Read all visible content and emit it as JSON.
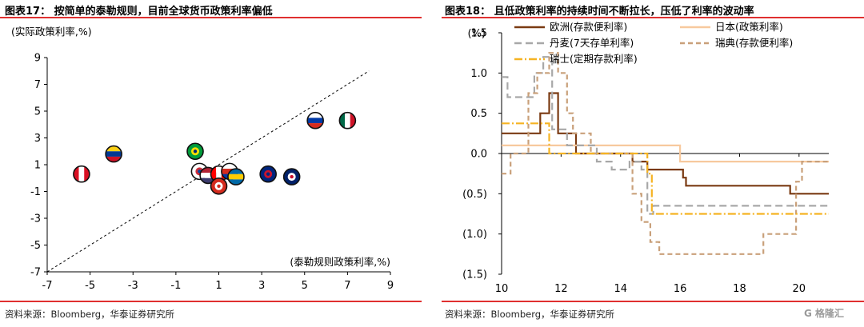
{
  "left": {
    "title": "图表17：  按简单的泰勒规则，目前全球货币政策利率偏低",
    "source": "资料来源：Bloomberg，华泰证券研究所"
  },
  "right": {
    "title": "图表18：  且低政策利率的持续时间不断拉长，压低了利率的波动率",
    "source": "资料来源：Bloomberg，华泰证券研究所"
  },
  "watermark": "G 格隆汇",
  "colors": {
    "rule": "#e03030"
  },
  "chart_data": [
    {
      "type": "scatter",
      "title": "",
      "ylabel": "(实际政策利率,%)",
      "xlabel": "(泰勒规则政策利率,%)",
      "xlim": [
        -7,
        9
      ],
      "ylim": [
        -7,
        9
      ],
      "xticks": [
        -7,
        -5,
        -3,
        -1,
        1,
        3,
        5,
        7,
        9
      ],
      "yticks": [
        9,
        7,
        5,
        3,
        1,
        -1,
        -3,
        -5,
        -7
      ],
      "reference_line": {
        "style": "dashed",
        "from": [
          -7,
          -7
        ],
        "to": [
          8,
          8
        ]
      },
      "points": [
        {
          "x": -5.4,
          "y": 0.3,
          "flag": "peru",
          "colors": [
            "#d91023",
            "#ffffff",
            "#d91023"
          ],
          "dir": "v"
        },
        {
          "x": -3.9,
          "y": 1.8,
          "flag": "colombia",
          "colors": [
            "#fcd116",
            "#003893",
            "#ce1126"
          ],
          "dir": "h"
        },
        {
          "x": -0.1,
          "y": 2.0,
          "flag": "brazil",
          "colors": [
            "#009c3b",
            "#ffdf00",
            "#002776"
          ],
          "dir": "c"
        },
        {
          "x": 0.1,
          "y": 0.5,
          "flag": "korea",
          "colors": [
            "#ffffff",
            "#cd2e3a",
            "#0047a0"
          ],
          "dir": "c"
        },
        {
          "x": 0.5,
          "y": 0.2,
          "flag": "usa",
          "colors": [
            "#b22234",
            "#ffffff",
            "#3c3b6e"
          ],
          "dir": "h"
        },
        {
          "x": 1.0,
          "y": 0.3,
          "flag": "canada",
          "colors": [
            "#ff0000",
            "#ffffff",
            "#ff0000"
          ],
          "dir": "v"
        },
        {
          "x": 1.5,
          "y": 0.5,
          "flag": "chile",
          "colors": [
            "#ffffff",
            "#d52b1e",
            "#0039a6"
          ],
          "dir": "h"
        },
        {
          "x": 1.8,
          "y": 0.1,
          "flag": "sweden",
          "colors": [
            "#006aa7",
            "#fecc00",
            "#006aa7"
          ],
          "dir": "h"
        },
        {
          "x": 1.0,
          "y": -0.6,
          "flag": "switzerland",
          "colors": [
            "#d52b1e",
            "#ffffff",
            "#d52b1e"
          ],
          "dir": "c"
        },
        {
          "x": 3.3,
          "y": 0.3,
          "flag": "new-zealand",
          "colors": [
            "#00247d",
            "#cc142b",
            "#00247d"
          ],
          "dir": "c"
        },
        {
          "x": 4.4,
          "y": 0.1,
          "flag": "uk",
          "colors": [
            "#012169",
            "#ffffff",
            "#c8102e"
          ],
          "dir": "c"
        },
        {
          "x": 5.5,
          "y": 4.3,
          "flag": "russia",
          "colors": [
            "#ffffff",
            "#0039a6",
            "#d52b1e"
          ],
          "dir": "h"
        },
        {
          "x": 7.0,
          "y": 4.3,
          "flag": "mexico",
          "colors": [
            "#006847",
            "#ffffff",
            "#ce1126"
          ],
          "dir": "v"
        }
      ]
    },
    {
      "type": "line",
      "title": "",
      "ylabel": "(%)",
      "xlim": [
        10,
        21
      ],
      "ylim": [
        -1.5,
        1.5
      ],
      "xticks": [
        10,
        12,
        14,
        16,
        18,
        20
      ],
      "yticks": [
        1.5,
        1.0,
        0.5,
        0.0,
        -0.5,
        -1.0,
        -1.5
      ],
      "ytick_labels": [
        "1.5",
        "1.0",
        "0.5",
        "0.0",
        "(0.5)",
        "(1.0)",
        "(1.5)"
      ],
      "legend_placement": "top",
      "series": [
        {
          "name": "欧洲(存款便利率)",
          "color": "#7a3a12",
          "dash": "",
          "width": 2.2,
          "points": [
            [
              10,
              0.25
            ],
            [
              11.3,
              0.25
            ],
            [
              11.3,
              0.5
            ],
            [
              11.6,
              0.5
            ],
            [
              11.6,
              0.75
            ],
            [
              11.9,
              0.75
            ],
            [
              11.9,
              0.25
            ],
            [
              12.5,
              0.25
            ],
            [
              12.5,
              0.0
            ],
            [
              14.4,
              0.0
            ],
            [
              14.4,
              -0.1
            ],
            [
              14.9,
              -0.1
            ],
            [
              14.9,
              -0.2
            ],
            [
              16.1,
              -0.2
            ],
            [
              16.1,
              -0.3
            ],
            [
              16.2,
              -0.3
            ],
            [
              16.2,
              -0.4
            ],
            [
              19.7,
              -0.4
            ],
            [
              19.7,
              -0.5
            ],
            [
              21,
              -0.5
            ]
          ]
        },
        {
          "name": "日本(政策利率)",
          "color": "#f7c99e",
          "dash": "",
          "width": 2.2,
          "points": [
            [
              10,
              0.1
            ],
            [
              16.0,
              0.1
            ],
            [
              16.0,
              -0.1
            ],
            [
              21,
              -0.1
            ]
          ]
        },
        {
          "name": "丹麦(7天存单利率)",
          "color": "#a8a8a8",
          "dash": "9,5",
          "width": 2.2,
          "points": [
            [
              10,
              0.95
            ],
            [
              10.2,
              0.95
            ],
            [
              10.2,
              0.7
            ],
            [
              11.1,
              0.7
            ],
            [
              11.1,
              1.0
            ],
            [
              11.4,
              1.0
            ],
            [
              11.4,
              1.2
            ],
            [
              11.7,
              1.2
            ],
            [
              11.7,
              0.3
            ],
            [
              12.2,
              0.3
            ],
            [
              12.2,
              0.1
            ],
            [
              13.2,
              0.1
            ],
            [
              13.2,
              -0.1
            ],
            [
              13.7,
              -0.1
            ],
            [
              13.7,
              -0.2
            ],
            [
              14.3,
              -0.2
            ],
            [
              14.3,
              -0.1
            ],
            [
              14.7,
              -0.1
            ],
            [
              14.7,
              -0.2
            ],
            [
              14.9,
              -0.2
            ],
            [
              14.9,
              -0.75
            ],
            [
              15.1,
              -0.75
            ],
            [
              15.1,
              -0.65
            ],
            [
              21,
              -0.65
            ]
          ]
        },
        {
          "name": "瑞典(存款便利率)",
          "color": "#c9a07a",
          "dash": "6,4",
          "width": 2.2,
          "points": [
            [
              10,
              -0.25
            ],
            [
              10.3,
              -0.25
            ],
            [
              10.3,
              0.0
            ],
            [
              10.9,
              0.0
            ],
            [
              10.9,
              0.75
            ],
            [
              11.2,
              0.75
            ],
            [
              11.2,
              1.0
            ],
            [
              11.6,
              1.0
            ],
            [
              11.6,
              1.25
            ],
            [
              11.9,
              1.25
            ],
            [
              11.9,
              1.0
            ],
            [
              12.2,
              1.0
            ],
            [
              12.2,
              0.5
            ],
            [
              12.4,
              0.5
            ],
            [
              12.4,
              0.25
            ],
            [
              13.0,
              0.25
            ],
            [
              13.0,
              0.0
            ],
            [
              14.4,
              0.0
            ],
            [
              14.4,
              -0.5
            ],
            [
              14.7,
              -0.5
            ],
            [
              14.7,
              -0.85
            ],
            [
              15.0,
              -0.85
            ],
            [
              15.0,
              -1.1
            ],
            [
              15.3,
              -1.1
            ],
            [
              15.3,
              -1.25
            ],
            [
              18.8,
              -1.25
            ],
            [
              18.8,
              -1.0
            ],
            [
              19.9,
              -1.0
            ],
            [
              19.9,
              -0.35
            ],
            [
              20.1,
              -0.35
            ],
            [
              20.1,
              -0.1
            ],
            [
              21,
              -0.1
            ]
          ]
        },
        {
          "name": "瑞士(定期存款利率)",
          "color": "#f5b323",
          "dash": "10,3,2,3",
          "width": 2.2,
          "points": [
            [
              10,
              0.375
            ],
            [
              11.6,
              0.375
            ],
            [
              11.6,
              0.0
            ],
            [
              12.6,
              0.0
            ],
            [
              12.6,
              0.0
            ],
            [
              14.9,
              0.0
            ],
            [
              14.9,
              -0.25
            ],
            [
              15.05,
              -0.25
            ],
            [
              15.05,
              -0.75
            ],
            [
              21,
              -0.75
            ]
          ]
        }
      ]
    }
  ]
}
